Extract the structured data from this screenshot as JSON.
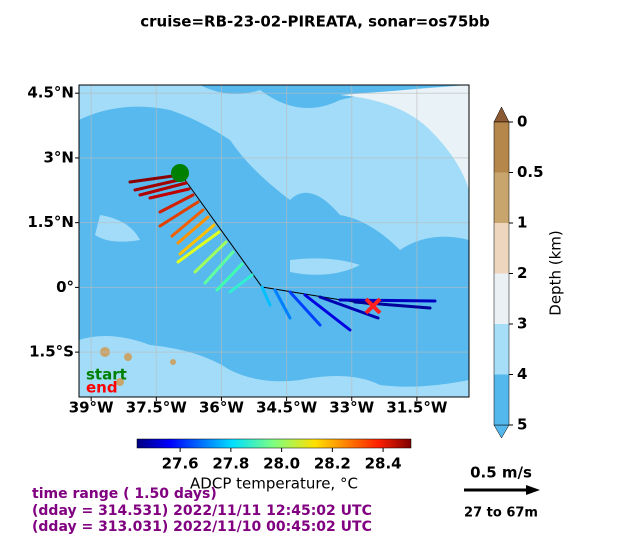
{
  "title": "cruise=RB-23-02-PIREATA,   sonar=os75bb",
  "map": {
    "xlim": [
      -39.28,
      -30.3
    ],
    "ylim": [
      -2.54,
      4.69
    ],
    "xticks": [
      {
        "value": -39,
        "label": "39°W"
      },
      {
        "value": -37.5,
        "label": "37.5°W"
      },
      {
        "value": -36,
        "label": "36°W"
      },
      {
        "value": -34.5,
        "label": "34.5°W"
      },
      {
        "value": -33,
        "label": "33°W"
      },
      {
        "value": -31.5,
        "label": "31.5°W"
      }
    ],
    "yticks": [
      {
        "value": 4.5,
        "label": "4.5°N"
      },
      {
        "value": 3,
        "label": "3°N"
      },
      {
        "value": 1.5,
        "label": "1.5°N"
      },
      {
        "value": 0,
        "label": "0°"
      },
      {
        "value": -1.5,
        "label": "1.5°S"
      }
    ],
    "start_label": "start",
    "end_label": "end"
  },
  "depth_colorbar": {
    "label": "Depth (km)",
    "ticks": [
      0,
      0.5,
      1,
      2,
      3,
      4,
      5
    ]
  },
  "temp_colorbar": {
    "label": "ADCP temperature, °C",
    "lim": [
      27.43,
      28.51
    ],
    "ticks": [
      27.6,
      27.8,
      {
        "value": 28,
        "label": "28.0"
      },
      28.2,
      28.4
    ]
  },
  "scale": {
    "speed": "0.5 m/s",
    "depth_range": "27 to 67m"
  },
  "time_range": [
    "time range ( 1.50 days)",
    "(dday = 314.531) 2022/11/11 12:45:02 UTC",
    "(dday = 313.031) 2022/11/10 00:45:02 UTC"
  ]
}
